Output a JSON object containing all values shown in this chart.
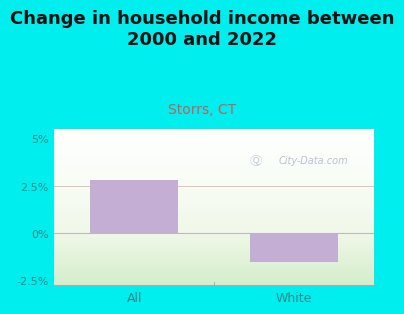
{
  "title": "Change in household income between\n2000 and 2022",
  "subtitle": "Storrs, CT",
  "categories": [
    "All",
    "White"
  ],
  "values": [
    2.8,
    -1.5
  ],
  "bar_color": "#c4aed4",
  "background_color": "#00eeee",
  "title_fontsize": 13,
  "subtitle_fontsize": 10,
  "subtitle_color": "#c06060",
  "tick_label_color": "#2a8a8a",
  "ylim": [
    -2.75,
    5.5
  ],
  "yticks": [
    -2.5,
    0.0,
    2.5,
    5.0
  ],
  "ytick_labels": [
    "-2.5%",
    "0%",
    "2.5%",
    "5%"
  ],
  "watermark": "City-Data.com",
  "watermark_color": "#b0b8c8",
  "bar_width": 0.55
}
